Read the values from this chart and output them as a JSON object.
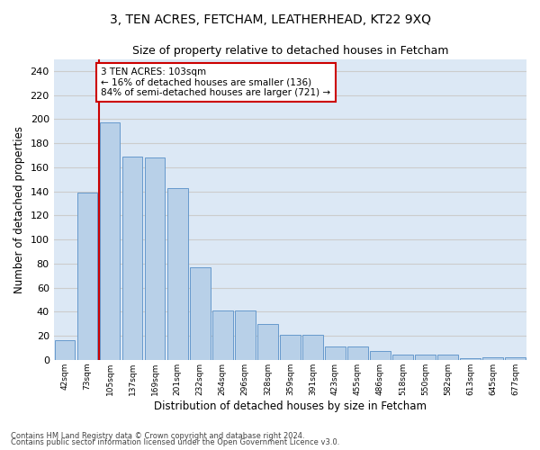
{
  "title": "3, TEN ACRES, FETCHAM, LEATHERHEAD, KT22 9XQ",
  "subtitle": "Size of property relative to detached houses in Fetcham",
  "xlabel": "Distribution of detached houses by size in Fetcham",
  "ylabel": "Number of detached properties",
  "bar_labels": [
    "42sqm",
    "73sqm",
    "105sqm",
    "137sqm",
    "169sqm",
    "201sqm",
    "232sqm",
    "264sqm",
    "296sqm",
    "328sqm",
    "359sqm",
    "391sqm",
    "423sqm",
    "455sqm",
    "486sqm",
    "518sqm",
    "550sqm",
    "582sqm",
    "613sqm",
    "645sqm",
    "677sqm"
  ],
  "bar_values": [
    16,
    139,
    197,
    169,
    168,
    143,
    77,
    41,
    41,
    30,
    21,
    21,
    11,
    11,
    7,
    4,
    4,
    4,
    1,
    2,
    2
  ],
  "bar_color": "#b8d0e8",
  "bar_edgecolor": "#6699cc",
  "reference_line_x": 1.5,
  "reference_line_color": "#cc0000",
  "annotation_text": "3 TEN ACRES: 103sqm\n← 16% of detached houses are smaller (136)\n84% of semi-detached houses are larger (721) →",
  "annotation_box_color": "#ffffff",
  "annotation_box_edgecolor": "#cc0000",
  "ylim": [
    0,
    250
  ],
  "yticks": [
    0,
    20,
    40,
    60,
    80,
    100,
    120,
    140,
    160,
    180,
    200,
    220,
    240
  ],
  "grid_color": "#cccccc",
  "bg_color": "#dce8f5",
  "footer1": "Contains HM Land Registry data © Crown copyright and database right 2024.",
  "footer2": "Contains public sector information licensed under the Open Government Licence v3.0."
}
